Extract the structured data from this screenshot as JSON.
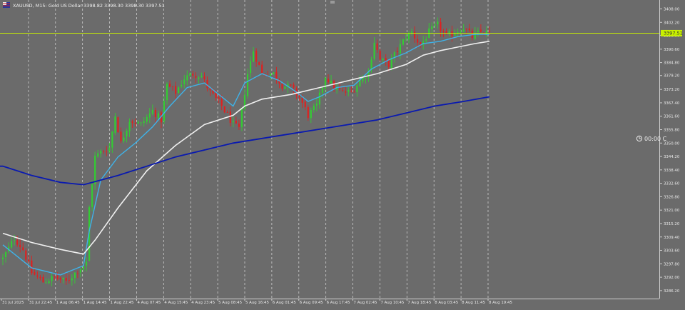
{
  "header": {
    "symbol_line": "XAUUSD, M15:  Gold US Dollar  3398.82 3398.30 3398.30 3397.51"
  },
  "price_badge": "3397.51",
  "timer_text": "00:00 C",
  "colors": {
    "background": "#6b6b6b",
    "grid": "#d8d8d8",
    "bull": "#33cc33",
    "bear": "#e02020",
    "current_price_line": "#c8f000",
    "ema_fast": "#3fb2e8",
    "ema_slow": "#f0f0f0",
    "ema_long": "#0a1ab0",
    "axis_text": "#e8e8e8"
  },
  "icons": {
    "symbol_icon": "flag-icon",
    "timer_icon": "clock-icon"
  },
  "chart_data": {
    "type": "candlestick",
    "y_ticks": [
      "3408.00",
      "3402.20",
      "3396.60",
      "3390.60",
      "3384.80",
      "3379.20",
      "3373.20",
      "3367.40",
      "3361.60",
      "3355.80",
      "3350.00",
      "3344.20",
      "3338.40",
      "3332.60",
      "3326.80",
      "3321.00",
      "3315.20",
      "3309.40",
      "3303.60",
      "3297.80",
      "3292.00",
      "3286.20"
    ],
    "ylim": [
      3284,
      3410
    ],
    "x_ticks": [
      "31 Jul 2025",
      "31 Jul 22:45",
      "1 Aug 06:45",
      "1 Aug 14:45",
      "1 Aug 22:45",
      "4 Aug 07:45",
      "4 Aug 15:45",
      "4 Aug 23:45",
      "5 Aug 08:45",
      "5 Aug 16:45",
      "6 Aug 01:45",
      "6 Aug 09:45",
      "6 Aug 17:45",
      "7 Aug 02:45",
      "7 Aug 10:45",
      "7 Aug 18:45",
      "8 Aug 03:45",
      "8 Aug 11:45",
      "8 Aug 19:45"
    ],
    "grid": "vertical dashed",
    "current_price": 3397.51,
    "anchors": [
      [
        0,
        3300
      ],
      [
        4,
        3309
      ],
      [
        7,
        3304
      ],
      [
        10,
        3294
      ],
      [
        14,
        3290
      ],
      [
        18,
        3292
      ],
      [
        22,
        3290
      ],
      [
        26,
        3295
      ],
      [
        29,
        3298
      ],
      [
        30,
        3322
      ],
      [
        32,
        3344
      ],
      [
        34,
        3346
      ],
      [
        37,
        3348
      ],
      [
        39,
        3362
      ],
      [
        41,
        3350
      ],
      [
        44,
        3360
      ],
      [
        48,
        3358
      ],
      [
        52,
        3364
      ],
      [
        55,
        3360
      ],
      [
        57,
        3375
      ],
      [
        60,
        3372
      ],
      [
        63,
        3378
      ],
      [
        66,
        3380
      ],
      [
        69,
        3379
      ],
      [
        72,
        3372
      ],
      [
        76,
        3366
      ],
      [
        80,
        3358
      ],
      [
        82,
        3356
      ],
      [
        85,
        3380
      ],
      [
        87,
        3390
      ],
      [
        90,
        3380
      ],
      [
        94,
        3380
      ],
      [
        97,
        3375
      ],
      [
        100,
        3374
      ],
      [
        103,
        3370
      ],
      [
        106,
        3362
      ],
      [
        109,
        3366
      ],
      [
        112,
        3379
      ],
      [
        115,
        3374
      ],
      [
        118,
        3372
      ],
      [
        121,
        3372
      ],
      [
        124,
        3377
      ],
      [
        127,
        3381
      ],
      [
        129,
        3394
      ],
      [
        131,
        3386
      ],
      [
        134,
        3384
      ],
      [
        137,
        3390
      ],
      [
        140,
        3396
      ],
      [
        142,
        3398
      ],
      [
        145,
        3392
      ],
      [
        148,
        3398
      ],
      [
        151,
        3401
      ],
      [
        154,
        3396
      ],
      [
        157,
        3398
      ],
      [
        160,
        3400
      ],
      [
        163,
        3396
      ],
      [
        166,
        3398
      ],
      [
        169,
        3397.51
      ]
    ],
    "candle_count": 170,
    "series": [
      {
        "name": "",
        "type": "ema",
        "points": [
          [
            0,
            3306
          ],
          [
            10,
            3296
          ],
          [
            20,
            3293
          ],
          [
            28,
            3297
          ],
          [
            30,
            3312
          ],
          [
            34,
            3334
          ],
          [
            40,
            3344
          ],
          [
            46,
            3350
          ],
          [
            52,
            3357
          ],
          [
            58,
            3366
          ],
          [
            64,
            3374
          ],
          [
            70,
            3376
          ],
          [
            76,
            3370
          ],
          [
            80,
            3366
          ],
          [
            84,
            3376
          ],
          [
            90,
            3380
          ],
          [
            96,
            3377
          ],
          [
            102,
            3372
          ],
          [
            106,
            3368
          ],
          [
            110,
            3370
          ],
          [
            116,
            3374
          ],
          [
            122,
            3375
          ],
          [
            128,
            3382
          ],
          [
            134,
            3386
          ],
          [
            140,
            3389
          ],
          [
            146,
            3393
          ],
          [
            152,
            3394
          ],
          [
            158,
            3396
          ],
          [
            164,
            3397
          ],
          [
            169,
            3397
          ]
        ]
      },
      {
        "name": "",
        "type": "ema",
        "points": [
          [
            0,
            3311
          ],
          [
            10,
            3307
          ],
          [
            20,
            3304
          ],
          [
            28,
            3302
          ],
          [
            32,
            3308
          ],
          [
            40,
            3322
          ],
          [
            50,
            3338
          ],
          [
            60,
            3349
          ],
          [
            70,
            3358
          ],
          [
            80,
            3362
          ],
          [
            84,
            3366
          ],
          [
            90,
            3369
          ],
          [
            100,
            3371
          ],
          [
            110,
            3374
          ],
          [
            120,
            3377
          ],
          [
            130,
            3380
          ],
          [
            140,
            3384
          ],
          [
            146,
            3388
          ],
          [
            152,
            3390
          ],
          [
            158,
            3391.5
          ],
          [
            164,
            3393
          ],
          [
            169,
            3394
          ]
        ]
      },
      {
        "name": "",
        "type": "ema",
        "points": [
          [
            0,
            3340
          ],
          [
            10,
            3336
          ],
          [
            20,
            3333
          ],
          [
            28,
            3332
          ],
          [
            40,
            3336
          ],
          [
            50,
            3340
          ],
          [
            60,
            3344
          ],
          [
            70,
            3347
          ],
          [
            80,
            3350
          ],
          [
            90,
            3352
          ],
          [
            100,
            3354
          ],
          [
            110,
            3356
          ],
          [
            120,
            3358
          ],
          [
            130,
            3360
          ],
          [
            140,
            3363
          ],
          [
            150,
            3366
          ],
          [
            160,
            3368
          ],
          [
            169,
            3370
          ]
        ]
      }
    ]
  }
}
